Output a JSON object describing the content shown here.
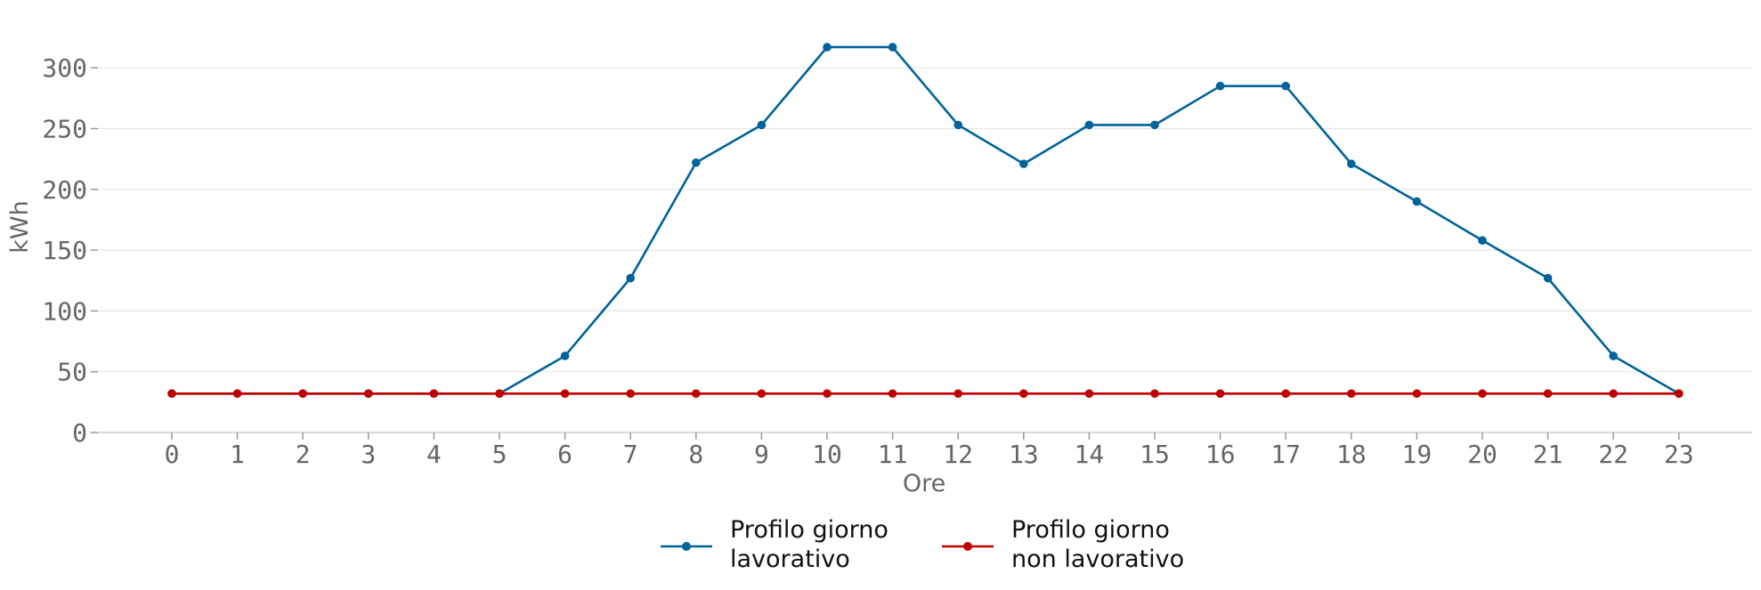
{
  "chart_data": {
    "type": "line",
    "title": "",
    "xlabel": "Ore",
    "ylabel": "kWh",
    "x": [
      0,
      1,
      2,
      3,
      4,
      5,
      6,
      7,
      8,
      9,
      10,
      11,
      12,
      13,
      14,
      15,
      16,
      17,
      18,
      19,
      20,
      21,
      22,
      23
    ],
    "x_tick_labels": [
      "0",
      "1",
      "2",
      "3",
      "4",
      "5",
      "6",
      "7",
      "8",
      "9",
      "10",
      "11",
      "12",
      "13",
      "14",
      "15",
      "16",
      "17",
      "18",
      "19",
      "20",
      "21",
      "22",
      "23"
    ],
    "y_ticks": [
      0,
      50,
      100,
      150,
      200,
      250,
      300
    ],
    "y_tick_labels": [
      "0",
      "50",
      "100",
      "150",
      "200",
      "250",
      "300"
    ],
    "ylim": [
      0,
      318
    ],
    "grid": "horizontal",
    "legend_position": "bottom-center",
    "series": [
      {
        "name": "Profilo giorno\nlavorativo",
        "name_lines": [
          "Profilo giorno",
          "lavorativo"
        ],
        "color": "#00639a",
        "marker": "circle",
        "values": [
          32,
          32,
          32,
          32,
          32,
          32,
          63,
          127,
          222,
          253,
          317,
          317,
          253,
          221,
          253,
          253,
          285,
          285,
          221,
          190,
          158,
          127,
          63,
          32
        ]
      },
      {
        "name": "Profilo giorno\nnon lavorativo",
        "name_lines": [
          "Profilo giorno",
          "non lavorativo"
        ],
        "color": "#c00000",
        "marker": "circle",
        "values": [
          32,
          32,
          32,
          32,
          32,
          32,
          32,
          32,
          32,
          32,
          32,
          32,
          32,
          32,
          32,
          32,
          32,
          32,
          32,
          32,
          32,
          32,
          32,
          32
        ]
      }
    ]
  }
}
